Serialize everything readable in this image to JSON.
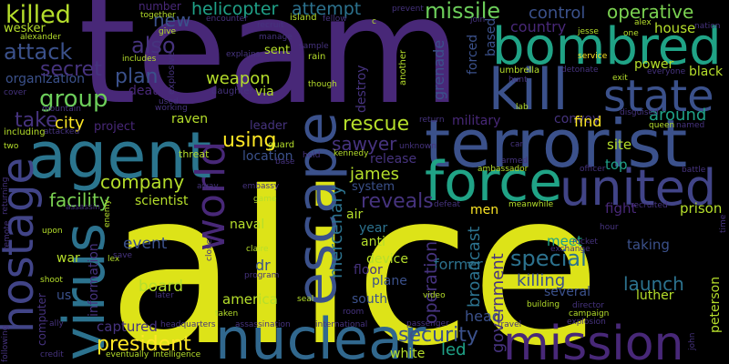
{
  "palette": {
    "background": "#000000",
    "colors": [
      "#440154",
      "#46327e",
      "#365c8d",
      "#277f8e",
      "#1fa187",
      "#4ac16d",
      "#a0da39",
      "#fde725"
    ]
  },
  "words": [
    {
      "text": "alice",
      "color": "#dde318",
      "orientation": "horizontal"
    },
    {
      "text": "team",
      "color": "#482878",
      "orientation": "horizontal"
    },
    {
      "text": "terrorist",
      "color": "#3b518b",
      "orientation": "horizontal"
    },
    {
      "text": "agent",
      "color": "#2b758e",
      "orientation": "horizontal"
    },
    {
      "text": "kill",
      "color": "#3b518b",
      "orientation": "horizontal"
    },
    {
      "text": "bombred",
      "color": "#20a386",
      "orientation": "horizontal"
    },
    {
      "text": "force",
      "color": "#20a386",
      "orientation": "horizontal"
    },
    {
      "text": "united",
      "color": "#414487",
      "orientation": "horizontal"
    },
    {
      "text": "nuclear",
      "color": "#31688e",
      "orientation": "horizontal"
    },
    {
      "text": "mission",
      "color": "#482878",
      "orientation": "horizontal"
    },
    {
      "text": "state",
      "color": "#3b518b",
      "orientation": "horizontal"
    },
    {
      "text": "escape",
      "color": "#3b518b",
      "orientation": "vertical"
    },
    {
      "text": "hostage",
      "color": "#414487",
      "orientation": "vertical"
    },
    {
      "text": "virus",
      "color": "#2c728e",
      "orientation": "vertical"
    },
    {
      "text": "world",
      "color": "#482878",
      "orientation": "vertical"
    },
    {
      "text": "killed",
      "color": "#b5de2b",
      "orientation": "horizontal"
    },
    {
      "text": "attack",
      "color": "#3b518b",
      "orientation": "horizontal"
    },
    {
      "text": "secret",
      "color": "#46337e",
      "orientation": "horizontal"
    },
    {
      "text": "group",
      "color": "#6ccd5a",
      "orientation": "horizontal"
    },
    {
      "text": "take",
      "color": "#46337e",
      "orientation": "horizontal"
    },
    {
      "text": "city",
      "color": "#fde725",
      "orientation": "horizontal"
    },
    {
      "text": "also",
      "color": "#46337e",
      "orientation": "horizontal"
    },
    {
      "text": "plan",
      "color": "#3b518b",
      "orientation": "horizontal"
    },
    {
      "text": "death",
      "color": "#482878",
      "orientation": "horizontal"
    },
    {
      "text": "weapon",
      "color": "#b5de2b",
      "orientation": "horizontal"
    },
    {
      "text": "helicopter",
      "color": "#1fa187",
      "orientation": "horizontal"
    },
    {
      "text": "attempt",
      "color": "#2c728e",
      "orientation": "horizontal"
    },
    {
      "text": "missile",
      "color": "#6ccd5a",
      "orientation": "horizontal"
    },
    {
      "text": "operative",
      "color": "#7ad151",
      "orientation": "horizontal"
    },
    {
      "text": "control",
      "color": "#3b518b",
      "orientation": "horizontal"
    },
    {
      "text": "rescue",
      "color": "#b5de2b",
      "orientation": "horizontal"
    },
    {
      "text": "using",
      "color": "#fde725",
      "orientation": "horizontal"
    },
    {
      "text": "sawyer",
      "color": "#46337e",
      "orientation": "horizontal"
    },
    {
      "text": "company",
      "color": "#b5de2b",
      "orientation": "horizontal"
    },
    {
      "text": "facility",
      "color": "#7ad151",
      "orientation": "horizontal"
    },
    {
      "text": "scientist",
      "color": "#b5de2b",
      "orientation": "horizontal"
    },
    {
      "text": "james",
      "color": "#b5de2b",
      "orientation": "horizontal"
    },
    {
      "text": "reveals",
      "color": "#46337e",
      "orientation": "horizontal"
    },
    {
      "text": "special",
      "color": "#2c728e",
      "orientation": "horizontal"
    },
    {
      "text": "killing",
      "color": "#3b518b",
      "orientation": "horizontal"
    },
    {
      "text": "launch",
      "color": "#2c728e",
      "orientation": "horizontal"
    },
    {
      "text": "around",
      "color": "#1fa187",
      "orientation": "horizontal"
    },
    {
      "text": "president",
      "color": "#fde725",
      "orientation": "horizontal"
    },
    {
      "text": "security",
      "color": "#3b518b",
      "orientation": "horizontal"
    },
    {
      "text": "event",
      "color": "#3b518b",
      "orientation": "horizontal"
    },
    {
      "text": "board",
      "color": "#b5de2b",
      "orientation": "horizontal"
    },
    {
      "text": "america",
      "color": "#b5de2b",
      "orientation": "horizontal"
    },
    {
      "text": "captured",
      "color": "#46337e",
      "orientation": "horizontal"
    },
    {
      "text": "naval",
      "color": "#b5de2b",
      "orientation": "horizontal"
    },
    {
      "text": "war",
      "color": "#b5de2b",
      "orientation": "horizontal"
    },
    {
      "text": "new",
      "color": "#3b518b",
      "orientation": "horizontal"
    },
    {
      "text": "project",
      "color": "#482878",
      "orientation": "horizontal"
    },
    {
      "text": "raven",
      "color": "#b5de2b",
      "orientation": "horizontal"
    },
    {
      "text": "location",
      "color": "#3b518b",
      "orientation": "horizontal"
    },
    {
      "text": "country",
      "color": "#482878",
      "orientation": "horizontal"
    },
    {
      "text": "house",
      "color": "#b5de2b",
      "orientation": "horizontal"
    },
    {
      "text": "power",
      "color": "#b5de2b",
      "orientation": "horizontal"
    },
    {
      "text": "black",
      "color": "#b5de2b",
      "orientation": "horizontal"
    },
    {
      "text": "convoy",
      "color": "#46337e",
      "orientation": "horizontal"
    },
    {
      "text": "find",
      "color": "#fde725",
      "orientation": "horizontal"
    },
    {
      "text": "site",
      "color": "#b5de2b",
      "orientation": "horizontal"
    },
    {
      "text": "top",
      "color": "#1fa187",
      "orientation": "horizontal"
    },
    {
      "text": "fight",
      "color": "#482878",
      "orientation": "horizontal"
    },
    {
      "text": "prison",
      "color": "#b5de2b",
      "orientation": "horizontal"
    },
    {
      "text": "meet",
      "color": "#1fa187",
      "orientation": "horizontal"
    },
    {
      "text": "taking",
      "color": "#3b518b",
      "orientation": "horizontal"
    },
    {
      "text": "former",
      "color": "#2c728e",
      "orientation": "horizontal"
    },
    {
      "text": "men",
      "color": "#fde725",
      "orientation": "horizontal"
    },
    {
      "text": "anti",
      "color": "#b5de2b",
      "orientation": "horizontal"
    },
    {
      "text": "device",
      "color": "#b5de2b",
      "orientation": "horizontal"
    },
    {
      "text": "floor",
      "color": "#46337e",
      "orientation": "horizontal"
    },
    {
      "text": "plane",
      "color": "#3b518b",
      "orientation": "horizontal"
    },
    {
      "text": "south",
      "color": "#3b518b",
      "orientation": "horizontal"
    },
    {
      "text": "white",
      "color": "#b5de2b",
      "orientation": "horizontal"
    },
    {
      "text": "led",
      "color": "#1fa187",
      "orientation": "horizontal"
    },
    {
      "text": "via",
      "color": "#b5de2b",
      "orientation": "horizontal"
    },
    {
      "text": "dr",
      "color": "#3b518b",
      "orientation": "horizontal"
    },
    {
      "text": "air",
      "color": "#b5de2b",
      "orientation": "horizontal"
    },
    {
      "text": "year",
      "color": "#2c728e",
      "orientation": "horizontal"
    },
    {
      "text": "release",
      "color": "#46337e",
      "orientation": "horizontal"
    },
    {
      "text": "system",
      "color": "#3b518b",
      "orientation": "horizontal"
    },
    {
      "text": "head",
      "color": "#3b518b",
      "orientation": "horizontal"
    },
    {
      "text": "several",
      "color": "#3b518b",
      "orientation": "horizontal"
    },
    {
      "text": "luther",
      "color": "#b5de2b",
      "orientation": "horizontal"
    },
    {
      "text": "organization",
      "color": "#3b518b",
      "orientation": "horizontal"
    },
    {
      "text": "wesker",
      "color": "#b5de2b",
      "orientation": "horizontal"
    },
    {
      "text": "leader",
      "color": "#46337e",
      "orientation": "horizontal"
    },
    {
      "text": "sent",
      "color": "#b5de2b",
      "orientation": "horizontal"
    },
    {
      "text": "number",
      "color": "#482878",
      "orientation": "horizontal"
    },
    {
      "text": "island",
      "color": "#b5de2b",
      "orientation": "horizontal"
    },
    {
      "text": "government",
      "color": "#46337e",
      "orientation": "vertical"
    },
    {
      "text": "mercenary",
      "color": "#2c728e",
      "orientation": "vertical"
    },
    {
      "text": "broadcast",
      "color": "#2c728e",
      "orientation": "vertical"
    },
    {
      "text": "operation",
      "color": "#46337e",
      "orientation": "vertical"
    },
    {
      "text": "information",
      "color": "#46337e",
      "orientation": "vertical"
    },
    {
      "text": "destroy",
      "color": "#46337e",
      "orientation": "vertical"
    },
    {
      "text": "grenade",
      "color": "#3b518b",
      "orientation": "vertical"
    },
    {
      "text": "forced",
      "color": "#3b518b",
      "orientation": "vertical"
    },
    {
      "text": "based",
      "color": "#3b518b",
      "orientation": "vertical"
    },
    {
      "text": "military",
      "color": "#482878",
      "orientation": "horizontal"
    },
    {
      "text": "guard",
      "color": "#b5de2b",
      "orientation": "horizontal"
    },
    {
      "text": "threat",
      "color": "#b5de2b",
      "orientation": "horizontal"
    },
    {
      "text": "peterson",
      "color": "#b5de2b",
      "orientation": "vertical"
    },
    {
      "text": "computer",
      "color": "#46337e",
      "orientation": "vertical"
    },
    {
      "text": "us",
      "color": "#3b518b",
      "orientation": "horizontal"
    },
    {
      "text": "another",
      "color": "#b5de2b",
      "orientation": "vertical"
    },
    {
      "text": "explosive",
      "color": "#46337e",
      "orientation": "vertical"
    },
    {
      "text": "rain",
      "color": "#b5de2b",
      "orientation": "horizontal"
    },
    {
      "text": "daughter",
      "color": "#46337e",
      "orientation": "horizontal"
    },
    {
      "text": "umbrella",
      "color": "#b5de2b",
      "orientation": "horizontal"
    },
    {
      "text": "including",
      "color": "#b5de2b",
      "orientation": "horizontal"
    },
    {
      "text": "mountain",
      "color": "#46337e",
      "orientation": "horizontal"
    },
    {
      "text": "cover",
      "color": "#46337e",
      "orientation": "horizontal"
    },
    {
      "text": "alexander",
      "color": "#b5de2b",
      "orientation": "horizontal"
    },
    {
      "text": "encounter",
      "color": "#46337e",
      "orientation": "horizontal"
    },
    {
      "text": "recruit",
      "color": "#46337e",
      "orientation": "horizontal"
    },
    {
      "text": "fellow",
      "color": "#46337e",
      "orientation": "horizontal"
    },
    {
      "text": "prevent",
      "color": "#46337e",
      "orientation": "horizontal"
    },
    {
      "text": "join",
      "color": "#46337e",
      "orientation": "horizontal"
    },
    {
      "text": "alex",
      "color": "#b5de2b",
      "orientation": "horizontal"
    },
    {
      "text": "nation",
      "color": "#46337e",
      "orientation": "horizontal"
    },
    {
      "text": "give",
      "color": "#b5de2b",
      "orientation": "horizontal"
    },
    {
      "text": "manage",
      "color": "#46337e",
      "orientation": "horizontal"
    },
    {
      "text": "together",
      "color": "#b5de2b",
      "orientation": "horizontal"
    },
    {
      "text": "includes",
      "color": "#b5de2b",
      "orientation": "horizontal"
    },
    {
      "text": "sample",
      "color": "#46337e",
      "orientation": "horizontal"
    },
    {
      "text": "explains",
      "color": "#46337e",
      "orientation": "horizontal"
    },
    {
      "text": "though",
      "color": "#b5de2b",
      "orientation": "horizontal"
    },
    {
      "text": "hunt",
      "color": "#46337e",
      "orientation": "horizontal"
    },
    {
      "text": "jesse",
      "color": "#b5de2b",
      "orientation": "horizontal"
    },
    {
      "text": "one",
      "color": "#b5de2b",
      "orientation": "horizontal"
    },
    {
      "text": "detonate",
      "color": "#46337e",
      "orientation": "horizontal"
    },
    {
      "text": "everyone",
      "color": "#46337e",
      "orientation": "horizontal"
    },
    {
      "text": "exit",
      "color": "#b5de2b",
      "orientation": "horizontal"
    },
    {
      "text": "lab",
      "color": "#b5de2b",
      "orientation": "horizontal"
    },
    {
      "text": "disguised",
      "color": "#46337e",
      "orientation": "horizontal"
    },
    {
      "text": "queen",
      "color": "#b5de2b",
      "orientation": "horizontal"
    },
    {
      "text": "named",
      "color": "#46337e",
      "orientation": "horizontal"
    },
    {
      "text": "working",
      "color": "#46337e",
      "orientation": "horizontal"
    },
    {
      "text": "used",
      "color": "#46337e",
      "orientation": "horizontal"
    },
    {
      "text": "return",
      "color": "#46337e",
      "orientation": "horizontal"
    },
    {
      "text": "attacked",
      "color": "#46337e",
      "orientation": "horizontal"
    },
    {
      "text": "kennedy",
      "color": "#b5de2b",
      "orientation": "horizontal"
    },
    {
      "text": "held",
      "color": "#46337e",
      "orientation": "horizontal"
    },
    {
      "text": "base",
      "color": "#46337e",
      "orientation": "horizontal"
    },
    {
      "text": "unknown",
      "color": "#46337e",
      "orientation": "horizontal"
    },
    {
      "text": "car",
      "color": "#46337e",
      "orientation": "horizontal"
    },
    {
      "text": "armed",
      "color": "#46337e",
      "orientation": "horizontal"
    },
    {
      "text": "two",
      "color": "#b5de2b",
      "orientation": "horizontal"
    },
    {
      "text": "ambassador",
      "color": "#b5de2b",
      "orientation": "horizontal"
    },
    {
      "text": "officer",
      "color": "#46337e",
      "orientation": "horizontal"
    },
    {
      "text": "battle",
      "color": "#46337e",
      "orientation": "horizontal"
    },
    {
      "text": "embassy",
      "color": "#46337e",
      "orientation": "horizontal"
    },
    {
      "text": "game",
      "color": "#b5de2b",
      "orientation": "horizontal"
    },
    {
      "text": "away",
      "color": "#46337e",
      "orientation": "horizontal"
    },
    {
      "text": "recruited",
      "color": "#46337e",
      "orientation": "horizontal"
    },
    {
      "text": "defeat",
      "color": "#46337e",
      "orientation": "horizontal"
    },
    {
      "text": "meanwhile",
      "color": "#b5de2b",
      "orientation": "horizontal"
    },
    {
      "text": "assassin",
      "color": "#46337e",
      "orientation": "horizontal"
    },
    {
      "text": "upon",
      "color": "#b5de2b",
      "orientation": "horizontal"
    },
    {
      "text": "claire",
      "color": "#b5de2b",
      "orientation": "horizontal"
    },
    {
      "text": "hour",
      "color": "#46337e",
      "orientation": "horizontal"
    },
    {
      "text": "rocket",
      "color": "#46337e",
      "orientation": "horizontal"
    },
    {
      "text": "exchange",
      "color": "#46337e",
      "orientation": "horizontal"
    },
    {
      "text": "service",
      "color": "#fde725",
      "orientation": "horizontal"
    },
    {
      "text": "lex",
      "color": "#b5de2b",
      "orientation": "horizontal"
    },
    {
      "text": "save",
      "color": "#46337e",
      "orientation": "horizontal"
    },
    {
      "text": "shoot",
      "color": "#b5de2b",
      "orientation": "horizontal"
    },
    {
      "text": "later",
      "color": "#46337e",
      "orientation": "horizontal"
    },
    {
      "text": "program",
      "color": "#46337e",
      "orientation": "horizontal"
    },
    {
      "text": "seal",
      "color": "#b5de2b",
      "orientation": "horizontal"
    },
    {
      "text": "room",
      "color": "#46337e",
      "orientation": "horizontal"
    },
    {
      "text": "video",
      "color": "#b5de2b",
      "orientation": "horizontal"
    },
    {
      "text": "building",
      "color": "#b5de2b",
      "orientation": "horizontal"
    },
    {
      "text": "director",
      "color": "#46337e",
      "orientation": "horizontal"
    },
    {
      "text": "campaign",
      "color": "#b5de2b",
      "orientation": "horizontal"
    },
    {
      "text": "explosion",
      "color": "#46337e",
      "orientation": "horizontal"
    },
    {
      "text": "taken",
      "color": "#b5de2b",
      "orientation": "horizontal"
    },
    {
      "text": "headquarters",
      "color": "#46337e",
      "orientation": "horizontal"
    },
    {
      "text": "assassination",
      "color": "#46337e",
      "orientation": "horizontal"
    },
    {
      "text": "international",
      "color": "#46337e",
      "orientation": "horizontal"
    },
    {
      "text": "passenger",
      "color": "#46337e",
      "orientation": "horizontal"
    },
    {
      "text": "travel",
      "color": "#46337e",
      "orientation": "horizontal"
    },
    {
      "text": "ally",
      "color": "#46337e",
      "orientation": "horizontal"
    },
    {
      "text": "credit",
      "color": "#46337e",
      "orientation": "horizontal"
    },
    {
      "text": "eventually",
      "color": "#b5de2b",
      "orientation": "horizontal"
    },
    {
      "text": "intelligence",
      "color": "#b5de2b",
      "orientation": "horizontal"
    },
    {
      "text": "following",
      "color": "#46337e",
      "orientation": "vertical"
    },
    {
      "text": "remote",
      "color": "#46337e",
      "orientation": "vertical"
    },
    {
      "text": "returning",
      "color": "#46337e",
      "orientation": "vertical"
    },
    {
      "text": "clone",
      "color": "#46337e",
      "orientation": "vertical"
    },
    {
      "text": "enemy",
      "color": "#b5de2b",
      "orientation": "vertical"
    },
    {
      "text": "john",
      "color": "#46337e",
      "orientation": "vertical"
    },
    {
      "text": "time",
      "color": "#46337e",
      "orientation": "vertical"
    },
    {
      "text": "c",
      "color": "#b5de2b",
      "orientation": "horizontal"
    }
  ]
}
